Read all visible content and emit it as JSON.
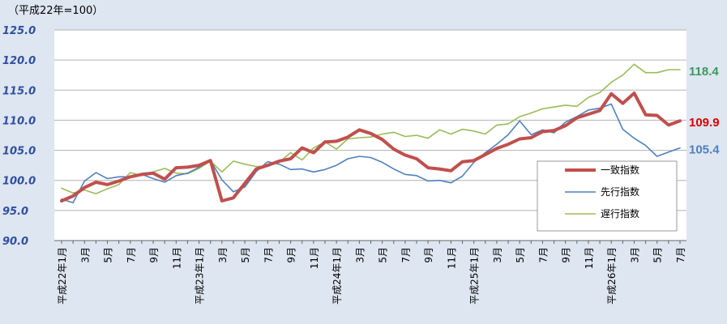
{
  "chart_data": {
    "type": "line",
    "unit_note": "（平成22年=100）",
    "ylim": [
      90.0,
      125.0
    ],
    "y_ticks": [
      "90.0",
      "95.0",
      "100.0",
      "105.0",
      "110.0",
      "115.0",
      "120.0",
      "125.0"
    ],
    "x_ticks": [
      {
        "index": 0,
        "label": "平成22年1月"
      },
      {
        "index": 2,
        "label": "3月"
      },
      {
        "index": 4,
        "label": "5月"
      },
      {
        "index": 6,
        "label": "7月"
      },
      {
        "index": 8,
        "label": "9月"
      },
      {
        "index": 10,
        "label": "11月"
      },
      {
        "index": 12,
        "label": "平成23年1月"
      },
      {
        "index": 14,
        "label": "3月"
      },
      {
        "index": 16,
        "label": "5月"
      },
      {
        "index": 18,
        "label": "7月"
      },
      {
        "index": 20,
        "label": "9月"
      },
      {
        "index": 22,
        "label": "11月"
      },
      {
        "index": 24,
        "label": "平成24年1月"
      },
      {
        "index": 26,
        "label": "3月"
      },
      {
        "index": 28,
        "label": "5月"
      },
      {
        "index": 30,
        "label": "7月"
      },
      {
        "index": 32,
        "label": "9月"
      },
      {
        "index": 34,
        "label": "11月"
      },
      {
        "index": 36,
        "label": "平成25年1月"
      },
      {
        "index": 38,
        "label": "3月"
      },
      {
        "index": 40,
        "label": "5月"
      },
      {
        "index": 42,
        "label": "7月"
      },
      {
        "index": 44,
        "label": "9月"
      },
      {
        "index": 46,
        "label": "11月"
      },
      {
        "index": 48,
        "label": "平成26年1月"
      },
      {
        "index": 50,
        "label": "3月"
      },
      {
        "index": 52,
        "label": "5月"
      },
      {
        "index": 54,
        "label": "7月"
      }
    ],
    "legend_position": "right",
    "grid": "horizontal",
    "series": [
      {
        "name": "一致指数",
        "color": "#c0504d",
        "end_label": "109.9",
        "values": [
          96.6,
          97.4,
          98.8,
          99.7,
          99.3,
          99.9,
          100.6,
          101.0,
          101.2,
          100.2,
          102.1,
          102.2,
          102.5,
          103.3,
          96.6,
          97.1,
          99.5,
          101.9,
          102.5,
          103.2,
          103.6,
          105.4,
          104.6,
          106.4,
          106.5,
          107.2,
          108.4,
          107.8,
          106.8,
          105.2,
          104.2,
          103.6,
          102.1,
          101.9,
          101.6,
          103.1,
          103.3,
          104.3,
          105.3,
          106.0,
          106.9,
          107.1,
          108.1,
          108.3,
          109.1,
          110.4,
          111.0,
          111.6,
          114.4,
          112.8,
          114.5,
          110.9,
          110.8,
          109.2,
          109.9
        ]
      },
      {
        "name": "先行指数",
        "color": "#4f81bd",
        "end_label": "105.4",
        "values": [
          96.9,
          96.3,
          99.9,
          101.3,
          100.3,
          100.6,
          100.6,
          101.0,
          100.3,
          99.7,
          100.8,
          101.2,
          102.2,
          103.3,
          100.1,
          98.1,
          98.9,
          101.5,
          103.1,
          102.7,
          101.8,
          101.9,
          101.4,
          101.8,
          102.5,
          103.6,
          104.0,
          103.8,
          103.0,
          101.9,
          101.0,
          100.8,
          99.9,
          100.0,
          99.6,
          100.7,
          103.0,
          104.6,
          106.0,
          107.6,
          109.9,
          107.6,
          108.4,
          107.9,
          109.7,
          110.6,
          111.7,
          112.0,
          112.7,
          108.5,
          107.0,
          105.8,
          104.0,
          104.7,
          105.4
        ]
      },
      {
        "name": "遅行指数",
        "color": "#9bbb59",
        "end_label": "118.4",
        "values": [
          98.7,
          97.9,
          98.4,
          97.8,
          98.6,
          99.3,
          101.3,
          100.8,
          101.4,
          102.0,
          101.2,
          101.1,
          102.0,
          103.2,
          101.4,
          103.2,
          102.7,
          102.3,
          102.4,
          103.0,
          104.6,
          103.4,
          105.4,
          106.4,
          105.2,
          106.9,
          107.1,
          107.2,
          107.7,
          108.0,
          107.3,
          107.5,
          107.0,
          108.4,
          107.7,
          108.5,
          108.2,
          107.7,
          109.2,
          109.4,
          110.6,
          111.2,
          111.9,
          112.2,
          112.5,
          112.3,
          113.8,
          114.6,
          116.3,
          117.5,
          119.3,
          117.9,
          117.9,
          118.4,
          118.4
        ]
      }
    ]
  }
}
